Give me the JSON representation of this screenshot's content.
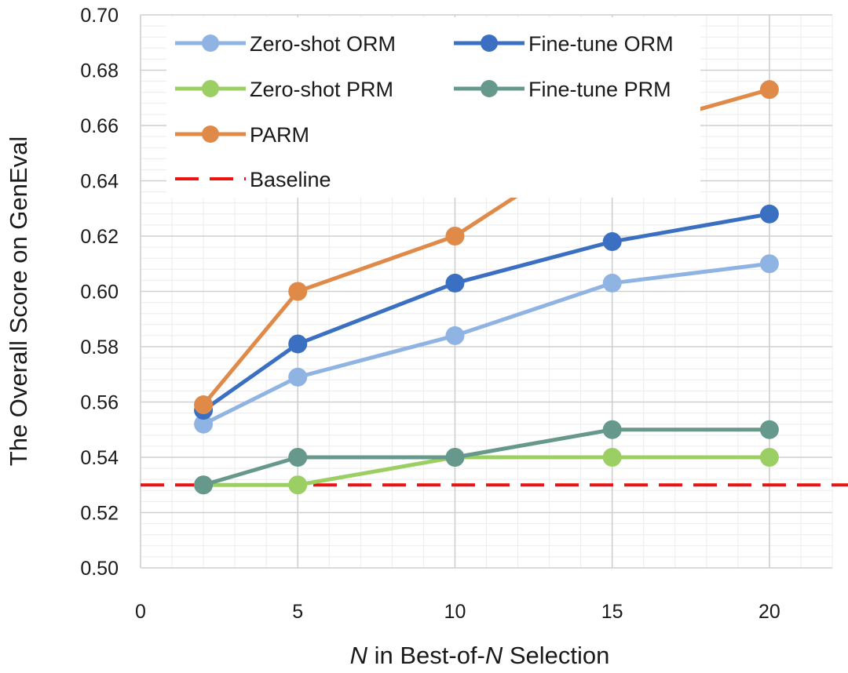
{
  "chart_data": {
    "type": "line",
    "title": "",
    "xlabel": "N in Best-of-N Selection",
    "xlabel_parts": [
      {
        "text": "N",
        "italic": true
      },
      {
        "text": " in Best-of-",
        "italic": false
      },
      {
        "text": "N",
        "italic": true
      },
      {
        "text": " Selection",
        "italic": false
      }
    ],
    "ylabel": "The Overall Score on GenEval",
    "xlim": [
      0,
      22
    ],
    "ylim": [
      0.5,
      0.7
    ],
    "x_ticks": [
      0,
      5,
      10,
      15,
      20
    ],
    "x_tick_labels": [
      "0",
      "5",
      "10",
      "15",
      "20"
    ],
    "y_ticks": [
      0.5,
      0.52,
      0.54,
      0.56,
      0.58,
      0.6,
      0.62,
      0.64,
      0.66,
      0.68,
      0.7
    ],
    "y_tick_labels": [
      "0.50",
      "0.52",
      "0.54",
      "0.56",
      "0.58",
      "0.60",
      "0.62",
      "0.64",
      "0.66",
      "0.68",
      "0.70"
    ],
    "grid": {
      "major": true,
      "minor": true
    },
    "legend_position": "top-left",
    "x": [
      2,
      5,
      10,
      15,
      20
    ],
    "series": [
      {
        "name": "Zero-shot ORM",
        "color": "#8fb4e3",
        "values": [
          0.552,
          0.569,
          0.584,
          0.603,
          0.61
        ]
      },
      {
        "name": "Fine-tune ORM",
        "color": "#3a6fc2",
        "values": [
          0.557,
          0.581,
          0.603,
          0.618,
          0.628
        ]
      },
      {
        "name": "Zero-shot PRM",
        "color": "#9bcf63",
        "values": [
          0.53,
          0.53,
          0.54,
          0.54,
          0.54
        ]
      },
      {
        "name": "Fine-tune PRM",
        "color": "#66998c",
        "values": [
          0.53,
          0.54,
          0.54,
          0.55,
          0.55
        ]
      },
      {
        "name": "PARM",
        "color": "#e08a4a",
        "values": [
          0.559,
          0.6,
          0.62,
          0.657,
          0.673
        ]
      }
    ],
    "baseline": {
      "name": "Baseline",
      "value": 0.53,
      "color": "#ee1111",
      "style": "dashed"
    },
    "draw_order": [
      "Zero-shot PRM",
      "Fine-tune PRM",
      "Zero-shot ORM",
      "Fine-tune ORM",
      "PARM"
    ]
  }
}
